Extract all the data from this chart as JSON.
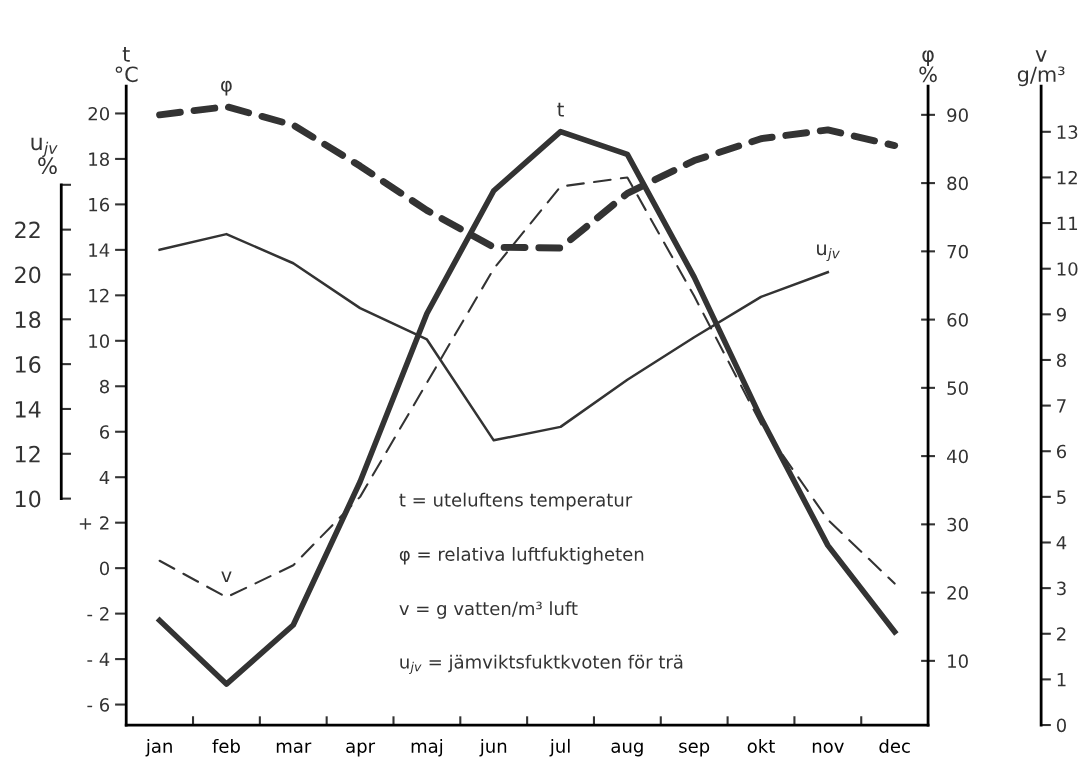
{
  "chart_data": [
    {
      "type": "line",
      "ylabel": "t\n°C",
      "y2label": "φ\n%",
      "y3label": "v\ng/m³",
      "categories": [
        "jan",
        "feb",
        "mar",
        "apr",
        "maj",
        "jun",
        "jul",
        "aug",
        "sep",
        "okt",
        "nov",
        "dec"
      ],
      "ylim": [
        -6.9,
        21.2
      ],
      "yticks": [
        {
          "value": -6,
          "label": "- 6"
        },
        {
          "value": -4,
          "label": "- 4"
        },
        {
          "value": -2,
          "label": "- 2"
        },
        0,
        {
          "value": 2,
          "label": "+ 2"
        },
        4,
        6,
        8,
        10,
        12,
        14,
        16,
        18,
        20
      ],
      "y2lim": [
        0.6,
        94.2
      ],
      "y2ticks": [
        10,
        20,
        30,
        40,
        50,
        60,
        70,
        80,
        90
      ],
      "y3lim": [
        0,
        14
      ],
      "y3ticks": [
        0,
        1,
        2,
        3,
        4,
        5,
        6,
        7,
        8,
        9,
        10,
        11,
        12,
        13
      ],
      "grid": false,
      "legend": false,
      "marker": "none",
      "series": [
        {
          "color": "#333333",
          "line_style": "solid",
          "values": [
            -2.3,
            -5.1,
            -2.5,
            3.8,
            11.2,
            16.6,
            19.2,
            18.2,
            12.8,
            6.6,
            1.0,
            -2.8
          ]
        },
        {
          "name": "φ",
          "color": "#333333",
          "line_style": "dashed",
          "axis": "y2",
          "values": [
            90.0,
            91.2,
            88.5,
            82.5,
            76.0,
            70.6,
            70.5,
            78.5,
            83.3,
            86.5,
            87.8,
            85.5
          ]
        },
        {
          "name": "v",
          "color": "#333333",
          "line_style": "dashed",
          "axis": "y3",
          "values": [
            3.6,
            2.8,
            3.5,
            5.0,
            7.5,
            10.0,
            11.8,
            12.0,
            9.4,
            6.6,
            4.5,
            3.1
          ]
        }
      ],
      "annotations": [
        {
          "text": "t",
          "x": "jul",
          "y": 19.2
        },
        "t = uteluftens temperatur",
        "φ = relativa luftfuktigheten",
        "v = g vatten/m³ luft",
        "u$_{jv}$ = jämviktsfuktkvoten för trä"
      ]
    },
    {
      "type": "line",
      "ylabel": "u$_{jv}$\n%",
      "tick_labels": "y",
      "categories": [
        "jan",
        "feb",
        "mar",
        "apr",
        "maj",
        "jun",
        "jul",
        "aug",
        "sep",
        "okt",
        "nov",
        "dec"
      ],
      "ylim": [
        -0.1,
        28.4
      ],
      "yticks": [
        10,
        12,
        14,
        16,
        18,
        20,
        22,
        {
          "value": 24,
          "label": null
        }
      ],
      "grid": false,
      "legend": false,
      "marker": "none",
      "series": [
        {
          "color": "#333333",
          "line_style": "solid",
          "values": [
            21.1,
            21.8,
            20.5,
            18.5,
            17.1,
            12.6,
            13.2,
            15.3,
            17.2,
            19.0,
            20.1,
            null
          ]
        }
      ],
      "annotations": [
        {
          "text": "u$_{jv}$",
          "x": "nov",
          "y": 20.1
        }
      ]
    }
  ]
}
